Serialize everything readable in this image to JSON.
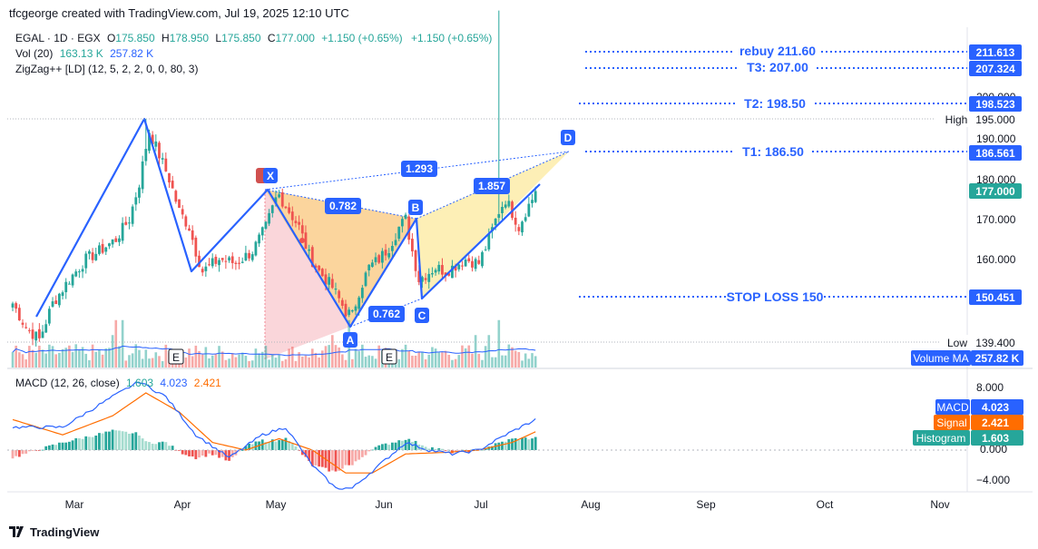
{
  "header": {
    "credit": "tfcgeorge created with TradingView.com, Jul 19, 2025 12:10 UTC",
    "symbol_line": "EGAL · 1D · EGX",
    "o_label": "O",
    "o_value": "175.850",
    "h_label": "H",
    "h_value": "178.950",
    "l_label": "L",
    "l_value": "175.850",
    "c_label": "C",
    "c_value": "177.000",
    "change1": "+1.150 (+0.65%)",
    "change2": "+1.150 (+0.65%)",
    "vol_label": "Vol (20)",
    "vol_value": "163.13 K",
    "vol_ma_value": "257.82 K",
    "zigzag_label": "ZigZag++ [LD] (12, 5, 2, 2, 0, 0, 80, 3)",
    "macd_label": "MACD (12, 26, close)",
    "macd_hist": "1.603",
    "macd_macd": "4.023",
    "macd_signal": "2.421"
  },
  "price_axis": {
    "ticks": [
      "190.000",
      "180.000",
      "170.000",
      "160.000"
    ],
    "hidden_tick": "200.000",
    "badges": {
      "rebuy": "211.613",
      "t3": "207.324",
      "t2": "198.523",
      "high_label": "High",
      "high_value": "195.000",
      "t1": "186.561",
      "last": "177.000",
      "stop": "150.451",
      "low_label": "Low",
      "low_value": "139.400",
      "volume_ma_label": "Volume MA",
      "volume_ma_value": "257.82 K"
    }
  },
  "macd_axis": {
    "ticks": [
      "8.000",
      "0.000",
      "−4.000"
    ],
    "macd_label": "MACD",
    "macd_value": "4.023",
    "signal_label": "Signal",
    "signal_value": "2.421",
    "hist_label": "Histogram",
    "hist_value": "1.603"
  },
  "levels": {
    "rebuy": "rebuy 211.60",
    "t3": "T3: 207.00",
    "t2": "T2: 198.50",
    "t1": "T1: 186.50",
    "stop": "STOP LOSS 150"
  },
  "pattern": {
    "points": [
      "X",
      "A",
      "B",
      "C",
      "D"
    ],
    "ratios": {
      "xa_b": "0.782",
      "ab_c": "0.762",
      "bc_d": "1.857",
      "xa_d": "1.293"
    },
    "event_markers": [
      "E",
      "E"
    ]
  },
  "x_axis": [
    "Mar",
    "Apr",
    "May",
    "Jun",
    "Jul",
    "Aug",
    "Sep",
    "Oct",
    "Nov"
  ],
  "footer": {
    "brand": "TradingView"
  },
  "colors": {
    "up": "#26a69a",
    "down": "#ef5350",
    "blue": "#2962ff",
    "macd": "#2962ff",
    "signal": "#ff6d00",
    "pattern_orange": "#f7b24c",
    "pattern_pink": "#f28a96",
    "pattern_yellow": "#fbe27a"
  },
  "chart_data": {
    "type": "candlestick",
    "title": "EGAL · 1D · EGX",
    "x_range": [
      "2025-02-10",
      "2025-11-20"
    ],
    "y_range": [
      133,
      222
    ],
    "annotation_levels": {
      "rebuy": 211.6,
      "t3": 207.0,
      "t2": 198.5,
      "t1": 186.5,
      "stop_loss": 150.0
    },
    "high": 195.0,
    "low": 139.4,
    "last_close": 177.0,
    "zigzag_swings": [
      {
        "date": "2025-02-14",
        "price": 140.0
      },
      {
        "date": "2025-03-21",
        "price": 195.0
      },
      {
        "date": "2025-04-08",
        "price": 157.0
      },
      {
        "date": "2025-04-29",
        "price": 178.0
      },
      {
        "date": "2025-05-22",
        "price": 144.0
      },
      {
        "date": "2025-06-10",
        "price": 171.0
      },
      {
        "date": "2025-06-14",
        "price": 150.0
      },
      {
        "date": "2025-07-17",
        "price": 179.0
      }
    ],
    "harmonic_pattern": {
      "X": {
        "date": "2025-04-29",
        "price": 178.0
      },
      "A": {
        "date": "2025-05-22",
        "price": 144.0
      },
      "B": {
        "date": "2025-06-10",
        "price": 171.0
      },
      "C": {
        "date": "2025-06-14",
        "price": 150.0
      },
      "D": {
        "date": "2025-07-29",
        "price": 187.0
      }
    },
    "closes_anchor_path": [
      [
        0,
        149
      ],
      [
        4,
        143
      ],
      [
        8,
        140
      ],
      [
        12,
        149
      ],
      [
        17,
        155
      ],
      [
        22,
        160
      ],
      [
        26,
        162
      ],
      [
        31,
        165
      ],
      [
        35,
        170
      ],
      [
        38,
        179
      ],
      [
        40,
        188
      ],
      [
        41,
        192
      ],
      [
        44,
        186
      ],
      [
        47,
        180
      ],
      [
        50,
        172
      ],
      [
        53,
        168
      ],
      [
        55,
        162
      ],
      [
        57,
        157
      ],
      [
        62,
        160
      ],
      [
        67,
        159
      ],
      [
        72,
        162
      ],
      [
        76,
        168
      ],
      [
        79,
        175
      ],
      [
        80,
        176
      ],
      [
        83,
        172
      ],
      [
        86,
        168
      ],
      [
        89,
        161
      ],
      [
        92,
        157
      ],
      [
        96,
        153
      ],
      [
        100,
        147
      ],
      [
        102,
        146
      ],
      [
        104,
        152
      ],
      [
        107,
        158
      ],
      [
        110,
        160
      ],
      [
        113,
        163
      ],
      [
        116,
        168
      ],
      [
        118,
        170
      ],
      [
        120,
        162
      ],
      [
        122,
        155
      ],
      [
        127,
        158
      ],
      [
        130,
        157
      ],
      [
        136,
        160
      ],
      [
        140,
        159
      ],
      [
        143,
        165
      ],
      [
        146,
        172
      ],
      [
        148,
        175
      ],
      [
        151,
        170
      ],
      [
        152,
        168
      ],
      [
        154,
        172
      ],
      [
        156,
        175
      ],
      [
        157,
        177
      ]
    ],
    "macd": {
      "macd_anchor": [
        [
          0,
          3
        ],
        [
          15,
          3
        ],
        [
          30,
          7
        ],
        [
          38,
          9
        ],
        [
          46,
          7
        ],
        [
          55,
          2
        ],
        [
          65,
          -1
        ],
        [
          75,
          2
        ],
        [
          82,
          3
        ],
        [
          90,
          -2
        ],
        [
          97,
          -5
        ],
        [
          102,
          -5
        ],
        [
          110,
          -2
        ],
        [
          118,
          1
        ],
        [
          125,
          0
        ],
        [
          132,
          -0.5
        ],
        [
          140,
          0
        ],
        [
          148,
          2
        ],
        [
          157,
          4.0
        ]
      ],
      "signal_anchor": [
        [
          0,
          4
        ],
        [
          15,
          2
        ],
        [
          30,
          4.5
        ],
        [
          40,
          7.5
        ],
        [
          50,
          5
        ],
        [
          60,
          1
        ],
        [
          70,
          0
        ],
        [
          80,
          1.5
        ],
        [
          90,
          0
        ],
        [
          100,
          -3
        ],
        [
          108,
          -3
        ],
        [
          118,
          -0.5
        ],
        [
          130,
          -0.3
        ],
        [
          140,
          0
        ],
        [
          150,
          1
        ],
        [
          157,
          2.4
        ]
      ],
      "y_range": [
        -6,
        9
      ]
    }
  }
}
